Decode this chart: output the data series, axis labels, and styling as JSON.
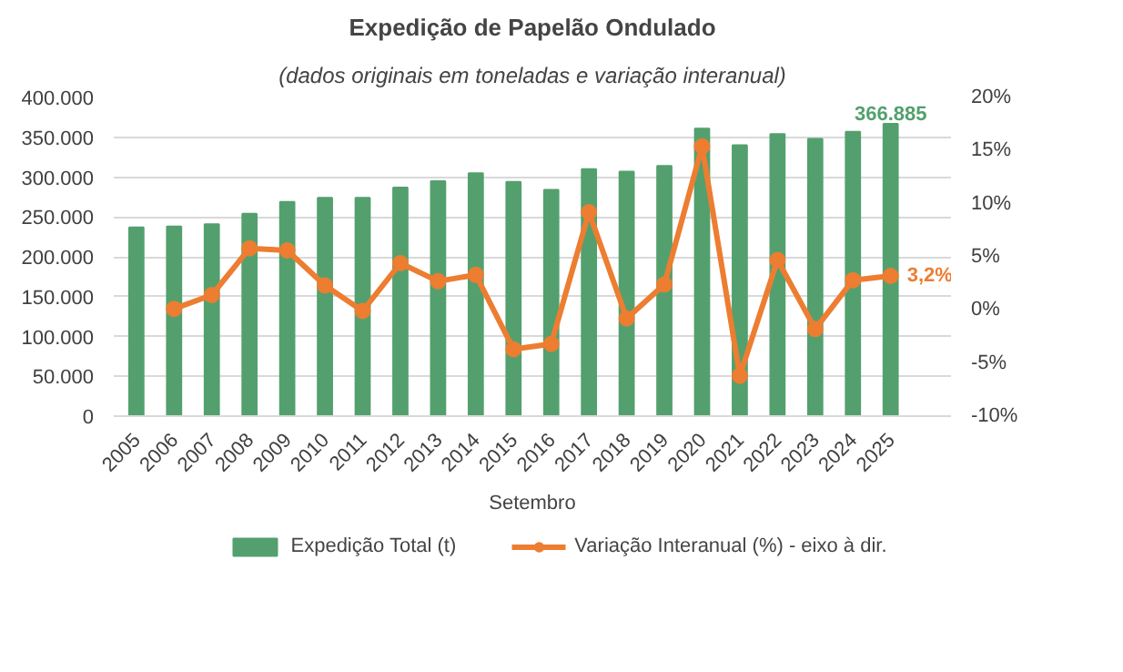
{
  "chart_data": {
    "type": "bar",
    "title": "Expedição de Papelão Ondulado",
    "subtitle": "(dados originais em toneladas e variação interanual)",
    "xlabel": "Setembro",
    "categories": [
      "2005",
      "2006",
      "2007",
      "2008",
      "2009",
      "2010",
      "2011",
      "2012",
      "2013",
      "2014",
      "2015",
      "2016",
      "2017",
      "2018",
      "2019",
      "2020",
      "2021",
      "2022",
      "2023",
      "2024",
      "2025"
    ],
    "series": [
      {
        "name": "Expedição Total (t)",
        "color": "#53a06e",
        "values": [
          237000,
          238000,
          241000,
          254000,
          269000,
          274000,
          274000,
          287000,
          295000,
          305000,
          294000,
          284000,
          310000,
          307000,
          314000,
          361000,
          340000,
          354000,
          348000,
          357000,
          366885
        ],
        "value_labels": [
          null,
          null,
          null,
          null,
          null,
          null,
          null,
          null,
          null,
          null,
          null,
          null,
          null,
          null,
          null,
          null,
          null,
          null,
          null,
          null,
          "366.885"
        ]
      },
      {
        "name": "Variação Interanual (%) - eixo à dir.",
        "type": "line",
        "axis": "y2",
        "color": "#ed7d31",
        "marker": "circle",
        "values": [
          null,
          0.1,
          1.4,
          5.8,
          5.6,
          2.3,
          -0.1,
          4.4,
          2.7,
          3.3,
          -3.7,
          -3.2,
          9.2,
          -0.8,
          2.4,
          15.4,
          -6.2,
          4.7,
          -1.8,
          2.8,
          3.2
        ],
        "value_labels": [
          null,
          null,
          null,
          null,
          null,
          null,
          null,
          null,
          null,
          null,
          null,
          null,
          null,
          null,
          null,
          null,
          null,
          null,
          null,
          null,
          "3,2%"
        ]
      }
    ],
    "ylim": [
      0,
      400000
    ],
    "yticks": [
      {
        "value": 0,
        "label": "0"
      },
      {
        "value": 50000,
        "label": "50.000"
      },
      {
        "value": 100000,
        "label": "100.000"
      },
      {
        "value": 150000,
        "label": "150.000"
      },
      {
        "value": 200000,
        "label": "200.000"
      },
      {
        "value": 250000,
        "label": "250.000"
      },
      {
        "value": 300000,
        "label": "300.000"
      },
      {
        "value": 350000,
        "label": "350.000"
      },
      {
        "value": 400000,
        "label": "400.000"
      }
    ],
    "y2lim": [
      -10,
      20
    ],
    "y2ticks": [
      {
        "value": -10,
        "label": "-10%"
      },
      {
        "value": -5,
        "label": "-5%"
      },
      {
        "value": 0,
        "label": "0%"
      },
      {
        "value": 5,
        "label": "5%"
      },
      {
        "value": 10,
        "label": "10%"
      },
      {
        "value": 15,
        "label": "15%"
      },
      {
        "value": 20,
        "label": "20%"
      }
    ],
    "grid": "y",
    "legend": "bottom"
  }
}
